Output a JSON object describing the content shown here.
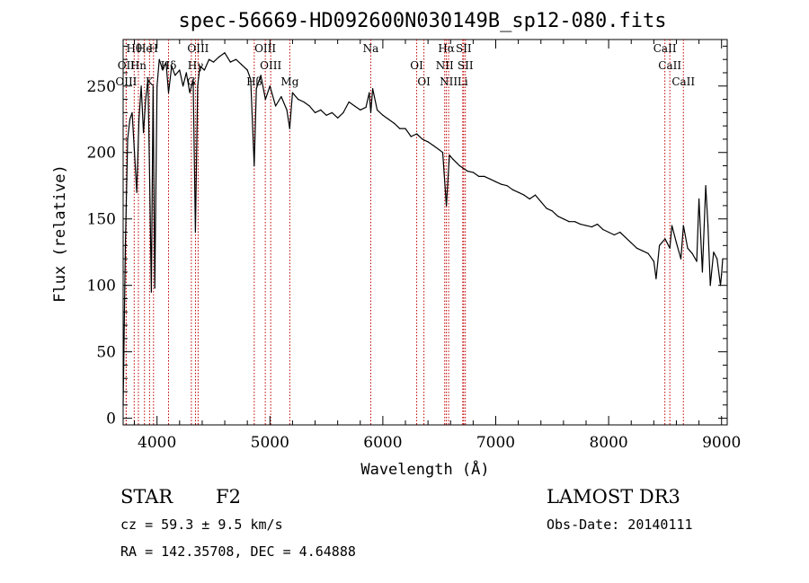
{
  "chart_data": {
    "type": "line",
    "title": "spec-56669-HD092600N030149B_sp12-080.fits",
    "xlabel": "Wavelength (Å)",
    "ylabel": "Flux (relative)",
    "xlim": [
      3700,
      9050
    ],
    "ylim": [
      -5,
      285
    ],
    "xticks": [
      4000,
      5000,
      6000,
      7000,
      8000,
      9000
    ],
    "yticks": [
      0,
      50,
      100,
      150,
      200,
      250
    ],
    "series": [
      {
        "name": "spectrum",
        "x": [
          3700,
          3720,
          3740,
          3760,
          3780,
          3800,
          3820,
          3840,
          3860,
          3880,
          3900,
          3920,
          3935,
          3950,
          3965,
          3980,
          4000,
          4020,
          4050,
          4080,
          4102,
          4130,
          4160,
          4200,
          4230,
          4260,
          4290,
          4320,
          4340,
          4360,
          4380,
          4420,
          4460,
          4500,
          4550,
          4600,
          4650,
          4700,
          4750,
          4800,
          4830,
          4861,
          4880,
          4920,
          4960,
          5000,
          5050,
          5100,
          5150,
          5175,
          5200,
          5250,
          5300,
          5350,
          5400,
          5450,
          5500,
          5550,
          5600,
          5650,
          5700,
          5750,
          5800,
          5850,
          5880,
          5893,
          5910,
          5950,
          6000,
          6050,
          6100,
          6150,
          6200,
          6250,
          6300,
          6350,
          6400,
          6450,
          6500,
          6530,
          6563,
          6590,
          6620,
          6680,
          6750,
          6800,
          6850,
          6900,
          6950,
          7000,
          7050,
          7100,
          7150,
          7200,
          7250,
          7300,
          7350,
          7400,
          7450,
          7500,
          7550,
          7600,
          7650,
          7700,
          7750,
          7800,
          7850,
          7900,
          7950,
          8000,
          8050,
          8100,
          8150,
          8200,
          8250,
          8300,
          8350,
          8400,
          8420,
          8450,
          8500,
          8542,
          8560,
          8600,
          8640,
          8662,
          8700,
          8740,
          8780,
          8800,
          8830,
          8860,
          8880,
          8900,
          8930,
          8960,
          8990,
          9000,
          9010
        ],
        "y": [
          10,
          130,
          210,
          225,
          230,
          200,
          170,
          225,
          250,
          215,
          240,
          255,
          180,
          95,
          250,
          98,
          250,
          270,
          262,
          268,
          245,
          265,
          258,
          262,
          250,
          260,
          245,
          255,
          140,
          250,
          265,
          262,
          270,
          268,
          272,
          275,
          268,
          270,
          266,
          262,
          255,
          190,
          248,
          258,
          240,
          250,
          235,
          242,
          232,
          218,
          245,
          240,
          238,
          235,
          230,
          232,
          228,
          230,
          226,
          230,
          238,
          235,
          232,
          234,
          245,
          230,
          248,
          232,
          228,
          225,
          222,
          218,
          218,
          212,
          214,
          210,
          208,
          205,
          202,
          200,
          160,
          198,
          195,
          190,
          186,
          185,
          182,
          182,
          180,
          178,
          176,
          175,
          172,
          170,
          168,
          165,
          168,
          163,
          158,
          156,
          152,
          150,
          148,
          148,
          146,
          145,
          144,
          146,
          142,
          140,
          138,
          140,
          136,
          132,
          128,
          126,
          124,
          118,
          105,
          130,
          135,
          128,
          145,
          132,
          120,
          145,
          128,
          124,
          118,
          165,
          110,
          175,
          145,
          100,
          125,
          120,
          100,
          108,
          120
        ]
      }
    ],
    "lines": [
      {
        "label": "Hθ",
        "x": 3798
      },
      {
        "label": "OII",
        "x": 3727
      },
      {
        "label": "OIII",
        "x": 3727
      },
      {
        "label": "He",
        "x": 3889
      },
      {
        "label": "Hn",
        "x": 3835
      },
      {
        "label": "K",
        "x": 3934
      },
      {
        "label": "H",
        "x": 3969
      },
      {
        "label": "Hδ",
        "x": 4102
      },
      {
        "label": "G",
        "x": 4304
      },
      {
        "label": "OIII",
        "x": 4364
      },
      {
        "label": "Hγ",
        "x": 4341
      },
      {
        "label": "Hβ",
        "x": 4861
      },
      {
        "label": "OIII",
        "x": 4959
      },
      {
        "label": "OIII",
        "x": 5007
      },
      {
        "label": "Mg",
        "x": 5176
      },
      {
        "label": "Na",
        "x": 5893
      },
      {
        "label": "OI",
        "x": 6300
      },
      {
        "label": "OI",
        "x": 6364
      },
      {
        "label": "Hα",
        "x": 6563
      },
      {
        "label": "NII",
        "x": 6548
      },
      {
        "label": "NII",
        "x": 6583
      },
      {
        "label": "SII",
        "x": 6716
      },
      {
        "label": "SII",
        "x": 6731
      },
      {
        "label": "Li",
        "x": 6708
      },
      {
        "label": "CaII",
        "x": 8498
      },
      {
        "label": "CaII",
        "x": 8542
      },
      {
        "label": "CaII",
        "x": 8662
      }
    ]
  },
  "info": {
    "object_class": "STAR",
    "subclass": "F2",
    "survey": "LAMOST DR3",
    "cz": "cz = 59.3 ± 9.5 km/s",
    "obs_date": "Obs-Date: 20140111",
    "coords": "RA = 142.35708, DEC =   4.64888"
  },
  "colors": {
    "spectrum": "#000000",
    "line_markers": "#c00000",
    "background": "#ffffff"
  }
}
